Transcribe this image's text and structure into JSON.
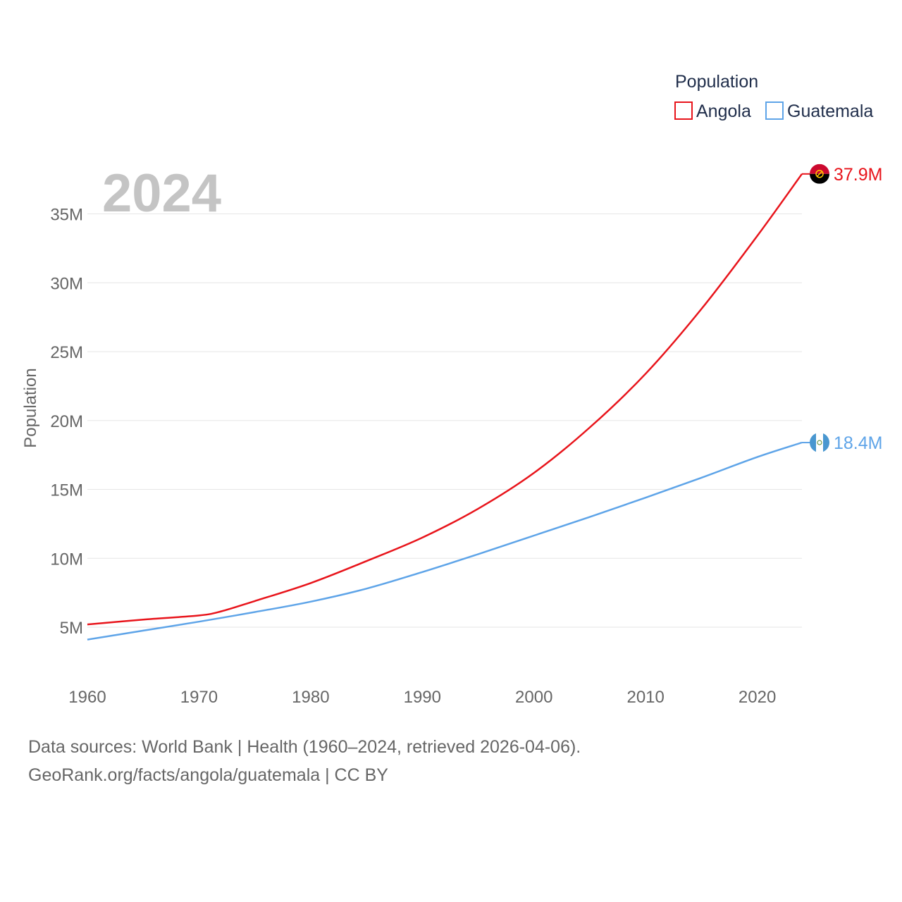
{
  "chart_data": {
    "type": "line",
    "title": "",
    "current_year": "2024",
    "xlabel": "",
    "ylabel": "Population",
    "xlim": [
      1960,
      2024
    ],
    "ylim": [
      1000000,
      38500000
    ],
    "x_ticks": [
      1960,
      1970,
      1980,
      1990,
      2000,
      2010,
      2020
    ],
    "y_ticks": [
      {
        "value": 5000000,
        "label": "5M"
      },
      {
        "value": 10000000,
        "label": "10M"
      },
      {
        "value": 15000000,
        "label": "15M"
      },
      {
        "value": 20000000,
        "label": "20M"
      },
      {
        "value": 25000000,
        "label": "25M"
      },
      {
        "value": 30000000,
        "label": "30M"
      },
      {
        "value": 35000000,
        "label": "35M"
      }
    ],
    "grid": true,
    "legend": {
      "title": "Population",
      "placement": "top-right"
    },
    "series": [
      {
        "name": "Angola",
        "color": "#e8141b",
        "end_label": "37.9M",
        "flag_icon": "angola-flag-icon",
        "points": [
          [
            1960,
            5200000
          ],
          [
            1965,
            5550000
          ],
          [
            1970,
            5850000
          ],
          [
            1972,
            6150000
          ],
          [
            1975,
            6900000
          ],
          [
            1980,
            8200000
          ],
          [
            1985,
            9800000
          ],
          [
            1990,
            11500000
          ],
          [
            1995,
            13600000
          ],
          [
            2000,
            16200000
          ],
          [
            2005,
            19500000
          ],
          [
            2010,
            23400000
          ],
          [
            2015,
            28100000
          ],
          [
            2020,
            33400000
          ],
          [
            2024,
            37900000
          ]
        ]
      },
      {
        "name": "Guatemala",
        "color": "#5ea4e8",
        "end_label": "18.4M",
        "flag_icon": "guatemala-flag-icon",
        "points": [
          [
            1960,
            4100000
          ],
          [
            1965,
            4750000
          ],
          [
            1970,
            5400000
          ],
          [
            1975,
            6100000
          ],
          [
            1980,
            6850000
          ],
          [
            1985,
            7800000
          ],
          [
            1990,
            9000000
          ],
          [
            1995,
            10300000
          ],
          [
            2000,
            11650000
          ],
          [
            2005,
            13000000
          ],
          [
            2010,
            14400000
          ],
          [
            2015,
            15850000
          ],
          [
            2020,
            17350000
          ],
          [
            2024,
            18400000
          ]
        ]
      }
    ]
  },
  "footer": {
    "sources": "Data sources: World Bank | Health (1960–2024, retrieved 2026-04-06).",
    "attribution": "GeoRank.org/facts/angola/guatemala | CC BY"
  }
}
